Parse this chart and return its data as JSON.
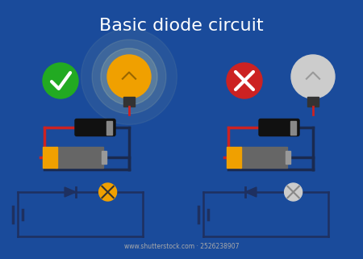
{
  "title": "Basic diode circuit",
  "bg_color": "#1a4b9b",
  "title_color": "white",
  "title_fontsize": 16,
  "wire_dark": "#1a2a50",
  "wire_red": "#cc2222",
  "battery_yellow": "#f0a000",
  "battery_gray": "#666666",
  "bulb_on_color": "#f0a000",
  "bulb_off_color": "#cccccc",
  "bulb_base_color": "#333333",
  "check_bg": "#22aa22",
  "cross_bg": "#cc2222",
  "diode_body": "#111111",
  "diode_band": "#888888",
  "schematic_wire": "#1e3060",
  "schematic_diode": "#1e3060",
  "bulb_sym_on": "#f0a000",
  "bulb_sym_off": "#cccccc",
  "watermark": "#aaaaaa"
}
